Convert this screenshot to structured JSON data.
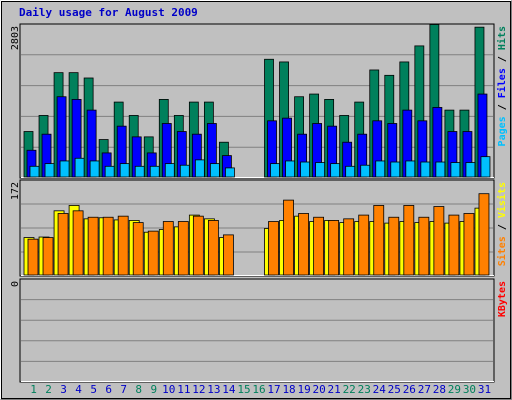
{
  "title": "Daily usage for August 2009",
  "colors": {
    "title": "#0000c8",
    "hits": "#00805c",
    "files": "#0000ff",
    "pages": "#00c0ff",
    "visits": "#ffff00",
    "sites": "#ff8000",
    "kbytes": "#ff0000",
    "weekend_day": "#00805c",
    "weekday": "#0000c8"
  },
  "chart_data": {
    "type": "bar",
    "title": "Daily usage for August 2009",
    "x": [
      "1",
      "2",
      "3",
      "4",
      "5",
      "6",
      "7",
      "8",
      "9",
      "10",
      "11",
      "12",
      "13",
      "14",
      "15",
      "16",
      "17",
      "18",
      "19",
      "20",
      "21",
      "22",
      "23",
      "24",
      "25",
      "26",
      "27",
      "28",
      "29",
      "30",
      "31"
    ],
    "weekend_days": [
      "1",
      "2",
      "8",
      "9",
      "15",
      "16",
      "22",
      "23",
      "29",
      "30"
    ],
    "panels": [
      {
        "name": "hits-files-pages",
        "ymax_label": "2803",
        "ylim": [
          0,
          2803
        ],
        "legend": [
          "Pages",
          "Files",
          "Hits"
        ],
        "legend_separator": " / ",
        "series": [
          {
            "name": "Hits",
            "values": [
              850,
              1150,
              1950,
              1950,
              1850,
              700,
              1400,
              1150,
              750,
              1450,
              1150,
              1400,
              1400,
              650,
              0,
              0,
              2200,
              2150,
              1500,
              1550,
              1450,
              1150,
              1400,
              2000,
              1900,
              2150,
              2450,
              2850,
              1250,
              1250,
              2800
            ]
          },
          {
            "name": "Files",
            "values": [
              500,
              800,
              1500,
              1450,
              1250,
              450,
              950,
              750,
              450,
              1000,
              850,
              800,
              1000,
              400,
              0,
              0,
              1050,
              1100,
              800,
              1000,
              950,
              650,
              800,
              1050,
              1000,
              1250,
              1050,
              1300,
              850,
              850,
              1550
            ]
          },
          {
            "name": "Pages",
            "values": [
              200,
              250,
              300,
              350,
              300,
              200,
              250,
              200,
              200,
              250,
              220,
              320,
              250,
              170,
              0,
              0,
              250,
              300,
              280,
              270,
              250,
              200,
              220,
              300,
              280,
              300,
              280,
              280,
              270,
              270,
              380
            ]
          }
        ]
      },
      {
        "name": "visits-sites",
        "ymax_label": "172",
        "ylim": [
          0,
          172
        ],
        "legend": [
          "Sites",
          "Visits"
        ],
        "legend_separator": " / ",
        "series": [
          {
            "name": "Visits",
            "values": [
              70,
              71,
              120,
              130,
              105,
              107,
              103,
              102,
              80,
              85,
              90,
              112,
              105,
              70,
              0,
              0,
              87,
              102,
              110,
              100,
              102,
              98,
              100,
              100,
              97,
              100,
              98,
              100,
              97,
              100,
              125
            ]
          },
          {
            "name": "Sites",
            "values": [
              67,
              70,
              115,
              120,
              108,
              108,
              110,
              98,
              82,
              100,
              100,
              110,
              102,
              75,
              0,
              0,
              100,
              140,
              115,
              108,
              102,
              105,
              112,
              130,
              108,
              130,
              108,
              128,
              112,
              115,
              152
            ]
          }
        ]
      },
      {
        "name": "kbytes",
        "ymax_label": "0",
        "ylim": [
          0,
          1
        ],
        "legend": [
          "KBytes"
        ],
        "series": [
          {
            "name": "KBytes",
            "values": [
              0,
              0,
              0,
              0,
              0,
              0,
              0,
              0,
              0,
              0,
              0,
              0,
              0,
              0,
              0,
              0,
              0,
              0,
              0,
              0,
              0,
              0,
              0,
              0,
              0,
              0,
              0,
              0,
              0,
              0,
              0
            ]
          }
        ]
      }
    ]
  }
}
